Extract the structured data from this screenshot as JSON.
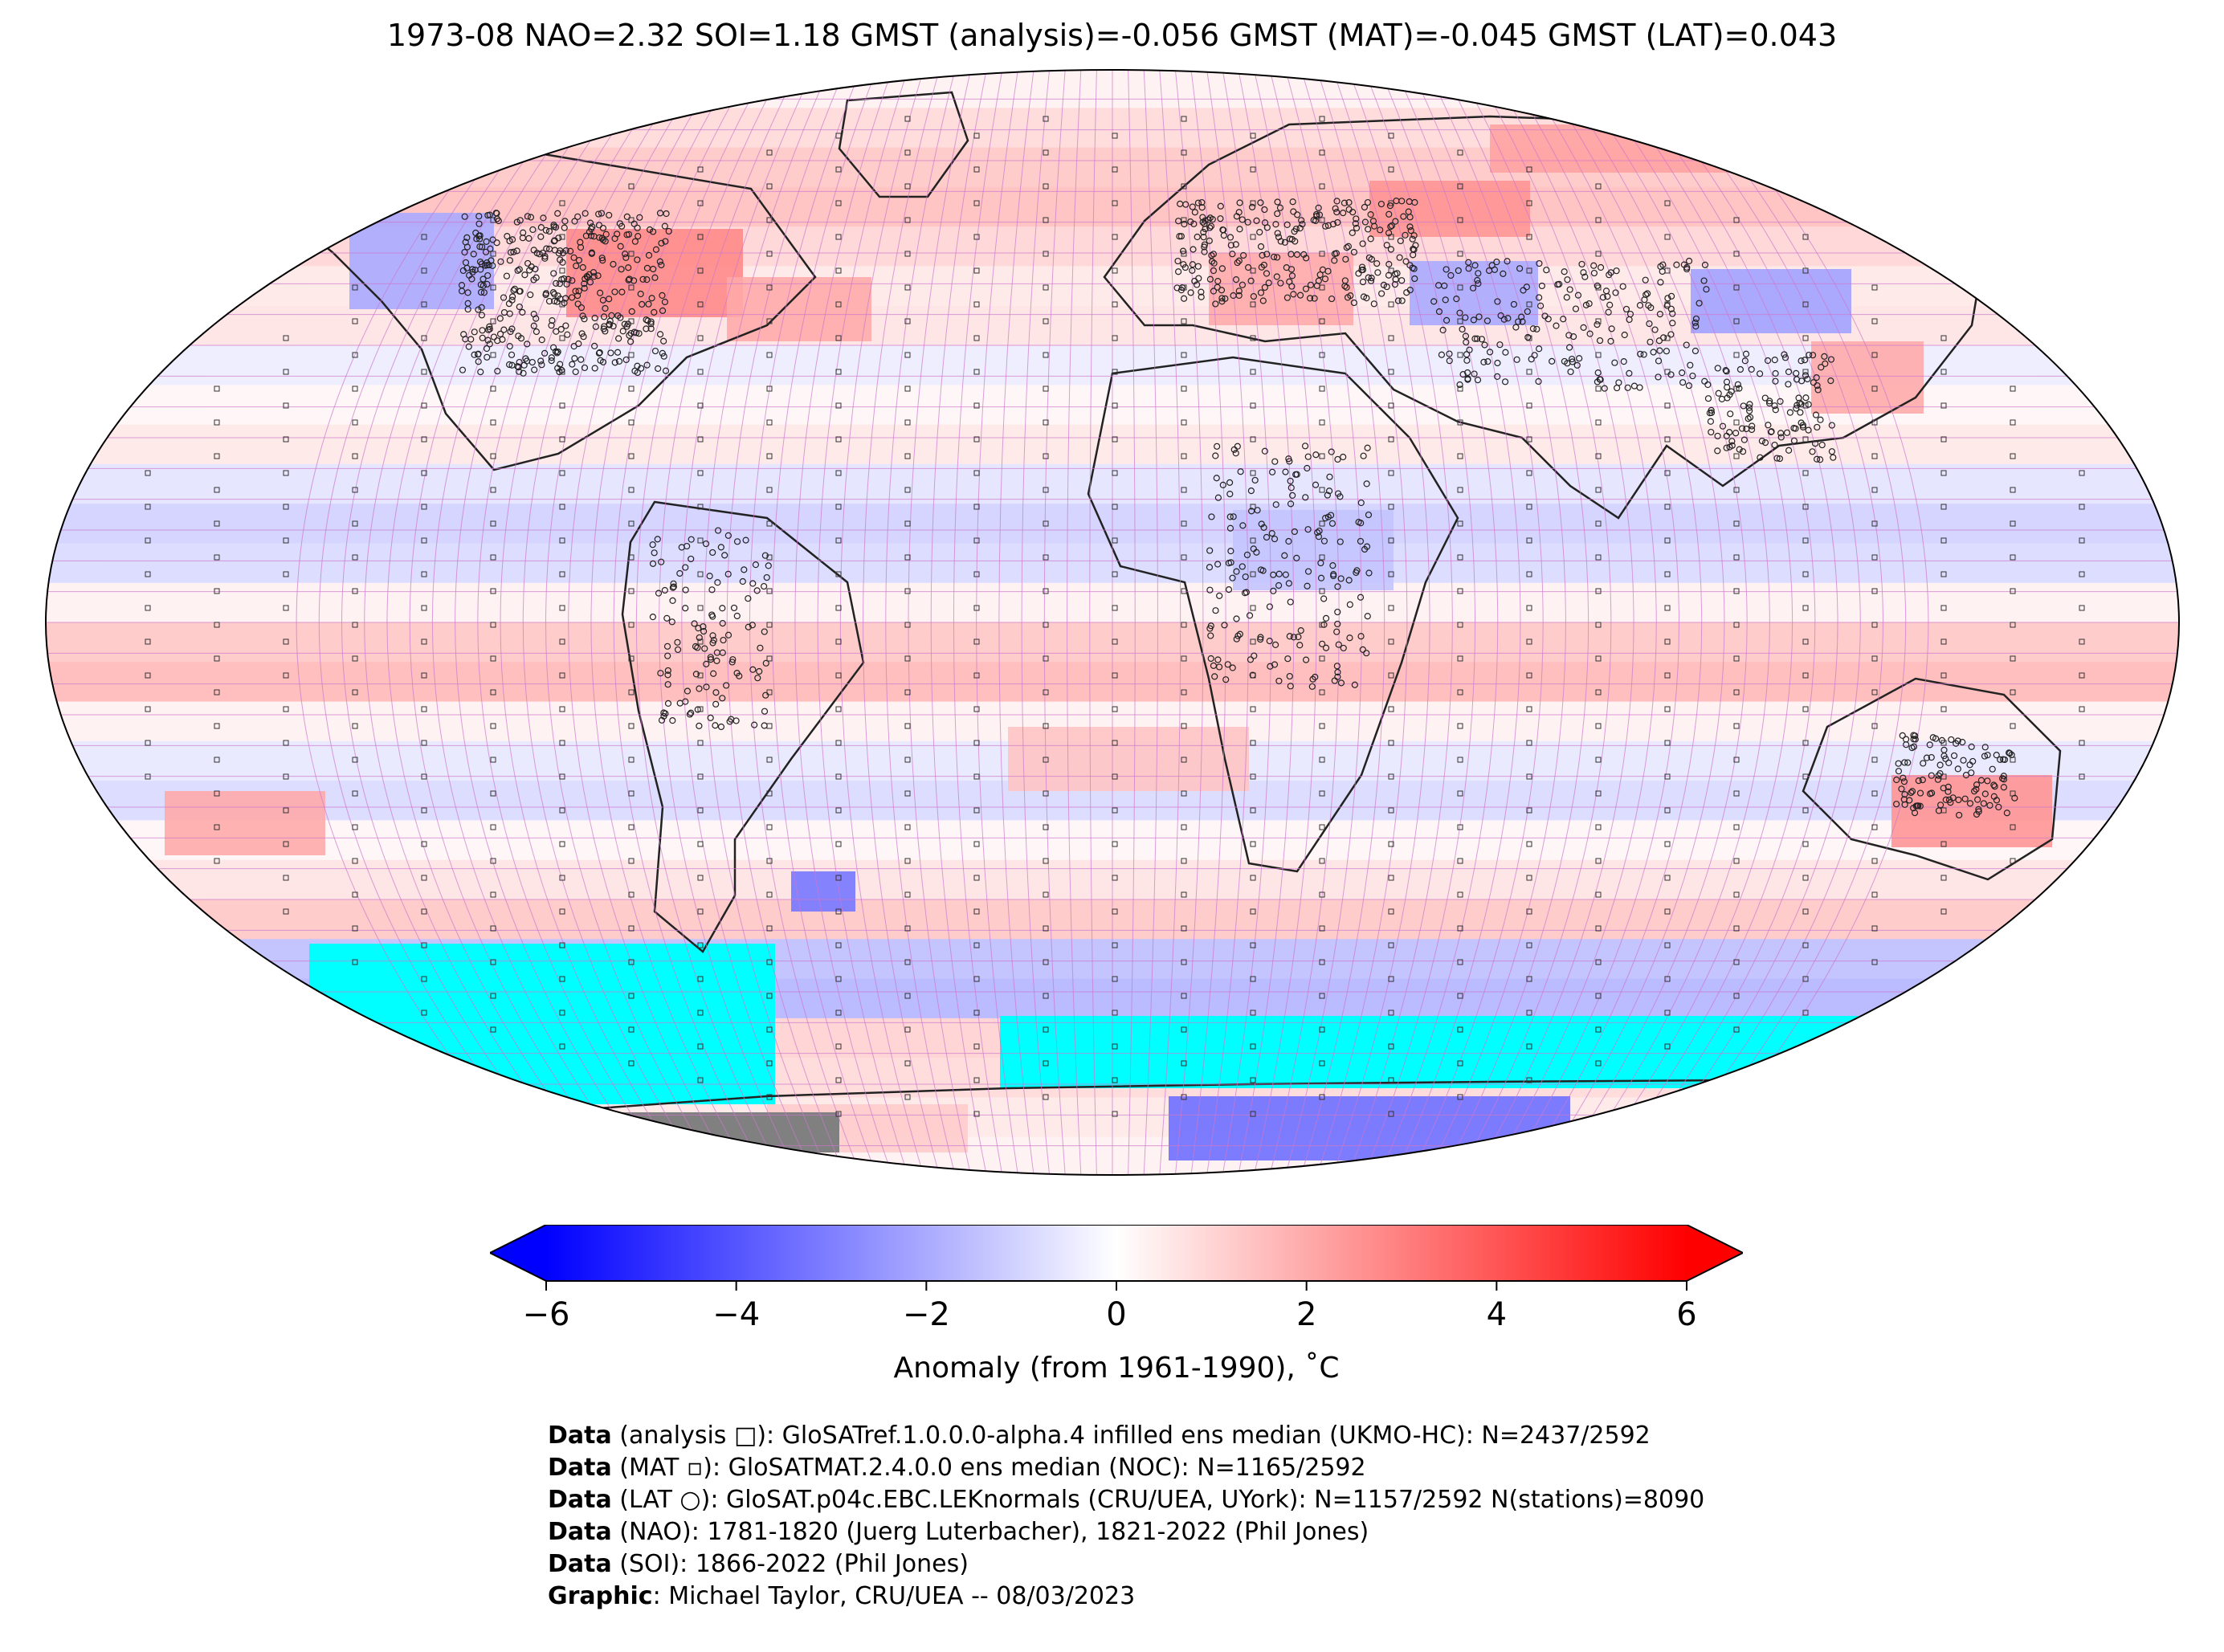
{
  "title": "1973-08 NAO=2.32 SOI=1.18 GMST (analysis)=-0.056 GMST (MAT)=-0.045 GMST (LAT)=0.043",
  "map": {
    "projection": "Robinson",
    "grid": "5x5 degree",
    "no_data_color": "#00ffff",
    "land_mask_color": "#808080",
    "gridline_color": "#cc77cc"
  },
  "colorbar": {
    "label": "Anomaly (from 1961-1990), ˚C",
    "ticks": [
      "−6",
      "−4",
      "−2",
      "0",
      "2",
      "4",
      "6"
    ],
    "range": [
      -6,
      6
    ],
    "colormap": [
      "#0000ff",
      "#ffffff",
      "#ff0000"
    ],
    "extend": "both"
  },
  "notes": [
    {
      "label": "Data",
      "text": " (analysis □): GloSATref.1.0.0.0-alpha.4 infilled ens median (UKMO-HC): N=2437/2592"
    },
    {
      "label": "Data",
      "text": " (MAT ▫): GloSATMAT.2.4.0.0 ens median (NOC): N=1165/2592"
    },
    {
      "label": "Data",
      "text": " (LAT ○): GloSAT.p04c.EBC.LEKnormals (CRU/UEA, UYork): N=1157/2592 N(stations)=8090"
    },
    {
      "label": "Data",
      "text": " (NAO): 1781-1820 (Juerg Luterbacher), 1821-2022 (Phil Jones)"
    },
    {
      "label": "Data",
      "text": " (SOI): 1866-2022 (Phil Jones)"
    },
    {
      "label": "Graphic",
      "text": ": Michael Taylor, CRU/UEA -- 08/03/2023"
    }
  ]
}
